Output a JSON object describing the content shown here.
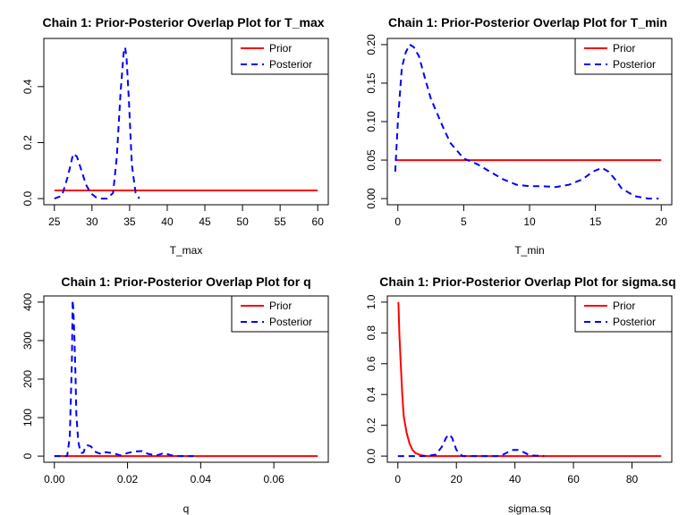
{
  "chart_data": [
    {
      "type": "line",
      "title": "Chain 1: Prior-Posterior Overlap Plot for T_max",
      "xlabel": "T_max",
      "ylabel": "",
      "xlim": [
        25,
        60
      ],
      "ylim": [
        0,
        0.55
      ],
      "xticks": [
        25,
        30,
        35,
        40,
        45,
        50,
        55,
        60
      ],
      "yticks": [
        0.0,
        0.2,
        0.4
      ],
      "ytick_labels": [
        "0.0",
        "0.2",
        "0.4"
      ],
      "legend": {
        "position": "top-right",
        "entries": [
          "Prior",
          "Posterior"
        ]
      },
      "colors": {
        "Prior": "#ff0000",
        "Posterior": "#0000ff"
      },
      "series": [
        {
          "name": "Prior",
          "style": "solid",
          "x": [
            25,
            60
          ],
          "y": [
            0.029,
            0.029
          ]
        },
        {
          "name": "Posterior",
          "style": "dashed",
          "x": [
            25.0,
            26.0,
            26.8,
            27.5,
            28.0,
            28.6,
            29.2,
            29.8,
            30.5,
            31.2,
            32.0,
            32.8,
            33.3,
            33.8,
            34.2,
            34.4,
            34.6,
            34.9,
            35.3,
            35.8,
            36.3
          ],
          "y": [
            0.0,
            0.01,
            0.08,
            0.16,
            0.15,
            0.1,
            0.05,
            0.02,
            0.005,
            0.0,
            0.0,
            0.02,
            0.15,
            0.38,
            0.52,
            0.54,
            0.5,
            0.35,
            0.12,
            0.02,
            0.0
          ]
        }
      ]
    },
    {
      "type": "line",
      "title": "Chain 1: Prior-Posterior Overlap Plot for T_min",
      "xlabel": "T_min",
      "ylabel": "",
      "xlim": [
        0,
        20
      ],
      "ylim": [
        0,
        0.2
      ],
      "xticks": [
        0,
        5,
        10,
        15,
        20
      ],
      "yticks": [
        0.0,
        0.05,
        0.1,
        0.15,
        0.2
      ],
      "ytick_labels": [
        "0.00",
        "0.05",
        "0.10",
        "0.15",
        "0.20"
      ],
      "legend": {
        "position": "top-right",
        "entries": [
          "Prior",
          "Posterior"
        ]
      },
      "colors": {
        "Prior": "#ff0000",
        "Posterior": "#0000ff"
      },
      "series": [
        {
          "name": "Prior",
          "style": "solid",
          "x": [
            -0.2,
            20
          ],
          "y": [
            0.05,
            0.05
          ]
        },
        {
          "name": "Posterior",
          "style": "dashed",
          "x": [
            -0.2,
            0.0,
            0.3,
            0.6,
            0.9,
            1.2,
            1.6,
            2.0,
            2.5,
            3.0,
            3.5,
            4.0,
            5.0,
            6.0,
            7.0,
            8.0,
            9.0,
            10.0,
            11.0,
            12.0,
            13.0,
            14.0,
            14.8,
            15.5,
            16.0,
            16.5,
            17.0,
            18.0,
            19.0,
            19.8
          ],
          "y": [
            0.035,
            0.1,
            0.17,
            0.19,
            0.2,
            0.197,
            0.185,
            0.16,
            0.13,
            0.11,
            0.09,
            0.072,
            0.052,
            0.045,
            0.035,
            0.025,
            0.018,
            0.016,
            0.016,
            0.015,
            0.018,
            0.025,
            0.035,
            0.04,
            0.035,
            0.025,
            0.013,
            0.003,
            0.0,
            0.0
          ]
        }
      ]
    },
    {
      "type": "line",
      "title": "Chain 1: Prior-Posterior Overlap Plot for q",
      "xlabel": "q",
      "ylabel": "",
      "xlim": [
        0,
        0.072
      ],
      "ylim": [
        0,
        400
      ],
      "xticks": [
        0.0,
        0.02,
        0.04,
        0.06
      ],
      "xtick_labels": [
        "0.00",
        "0.02",
        "0.04",
        "0.06"
      ],
      "yticks": [
        0,
        100,
        200,
        300,
        400
      ],
      "ytick_labels": [
        "0",
        "100",
        "200",
        "300",
        "400"
      ],
      "legend": {
        "position": "top-right",
        "entries": [
          "Prior",
          "Posterior"
        ]
      },
      "colors": {
        "Prior": "#ff0000",
        "Posterior": "#0000ff"
      },
      "series": [
        {
          "name": "Prior",
          "style": "solid",
          "x": [
            0,
            0.072
          ],
          "y": [
            0,
            0
          ]
        },
        {
          "name": "Posterior",
          "style": "dashed",
          "x": [
            0.0,
            0.0035,
            0.0042,
            0.0048,
            0.005,
            0.0052,
            0.0055,
            0.0058,
            0.006,
            0.0065,
            0.007,
            0.0075,
            0.008,
            0.0085,
            0.009,
            0.0095,
            0.01,
            0.011,
            0.012,
            0.013,
            0.014,
            0.016,
            0.018,
            0.02,
            0.022,
            0.024,
            0.025,
            0.026,
            0.028,
            0.03,
            0.032,
            0.034,
            0.036,
            0.038
          ],
          "y": [
            0,
            0,
            50,
            250,
            405,
            380,
            300,
            200,
            110,
            40,
            15,
            8,
            10,
            25,
            28,
            27,
            25,
            12,
            8,
            5,
            10,
            8,
            2,
            8,
            12,
            13,
            8,
            5,
            2,
            8,
            2,
            0,
            0,
            0
          ]
        }
      ]
    },
    {
      "type": "line",
      "title": "Chain 1: Prior-Posterior Overlap Plot for sigma.sq",
      "xlabel": "sigma.sq",
      "ylabel": "",
      "xlim": [
        0,
        90
      ],
      "ylim": [
        0,
        1
      ],
      "xticks": [
        0,
        20,
        40,
        60,
        80
      ],
      "yticks": [
        0.0,
        0.2,
        0.4,
        0.6,
        0.8,
        1.0
      ],
      "ytick_labels": [
        "0.0",
        "0.2",
        "0.4",
        "0.6",
        "0.8",
        "1.0"
      ],
      "legend": {
        "position": "top-right",
        "entries": [
          "Prior",
          "Posterior"
        ]
      },
      "colors": {
        "Prior": "#ff0000",
        "Posterior": "#0000ff"
      },
      "series": [
        {
          "name": "Prior",
          "style": "solid",
          "x": [
            0.2,
            0.5,
            1.0,
            1.5,
            2.0,
            3.0,
            4.0,
            5.0,
            6.0,
            8.0,
            10.0,
            15.0,
            90.0
          ],
          "y": [
            1.0,
            0.8,
            0.6,
            0.4,
            0.26,
            0.15,
            0.08,
            0.04,
            0.02,
            0.005,
            0.0,
            0.0,
            0.0
          ]
        },
        {
          "name": "Posterior",
          "style": "dashed",
          "x": [
            0,
            10,
            13,
            15,
            16.5,
            17.5,
            18.5,
            20,
            22,
            30,
            35,
            37,
            39,
            41,
            43,
            45,
            50
          ],
          "y": [
            0,
            0,
            0.01,
            0.06,
            0.12,
            0.14,
            0.12,
            0.04,
            0.0,
            0.0,
            0.0,
            0.02,
            0.04,
            0.04,
            0.025,
            0.005,
            0.0
          ]
        }
      ]
    }
  ]
}
